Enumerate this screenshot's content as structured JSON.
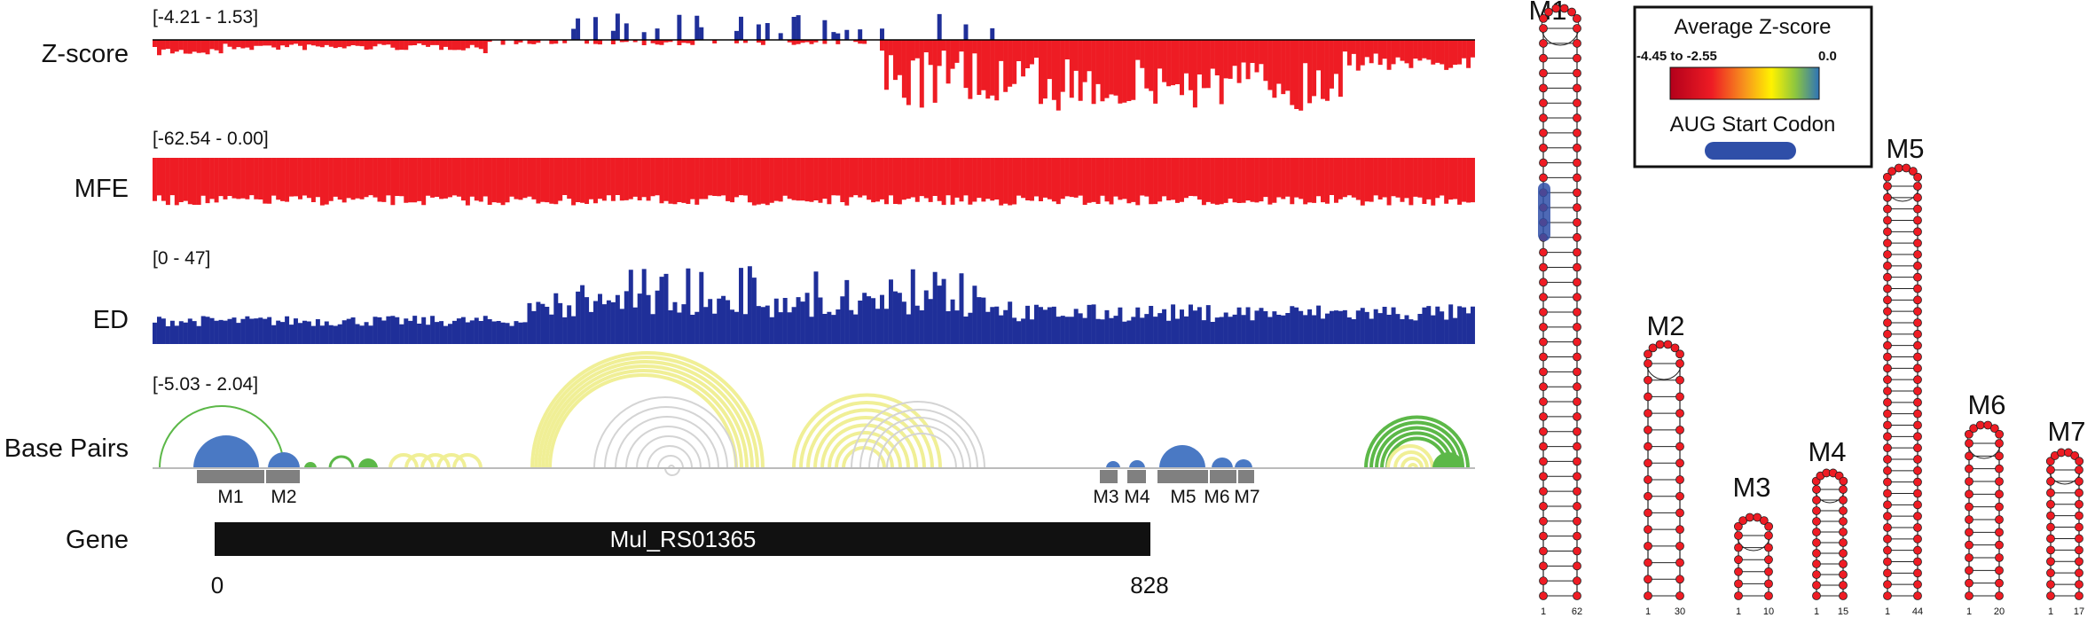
{
  "tracks": [
    {
      "id": "zscore",
      "label": "Z-score",
      "range": "[-4.21 - 1.53]"
    },
    {
      "id": "mfe",
      "label": "MFE",
      "range": "[-62.54 - 0.00]"
    },
    {
      "id": "ed",
      "label": "ED",
      "range": "[0 - 47]"
    },
    {
      "id": "bp",
      "label": "Base Pairs",
      "range": "[-5.03 - 2.04]"
    },
    {
      "id": "gene",
      "label": "Gene",
      "range": ""
    }
  ],
  "gene": {
    "name": "Mul_RS01365",
    "start": "0",
    "end": "828"
  },
  "motif_tags": [
    "M1",
    "M2",
    "M3",
    "M4",
    "M5",
    "M6",
    "M7"
  ],
  "structures": [
    {
      "name": "M1",
      "ends": [
        "1",
        "62"
      ]
    },
    {
      "name": "M2",
      "ends": [
        "1",
        "30"
      ]
    },
    {
      "name": "M3",
      "ends": [
        "1",
        "10"
      ]
    },
    {
      "name": "M4",
      "ends": [
        "1",
        "15"
      ]
    },
    {
      "name": "M5",
      "ends": [
        "1",
        "44"
      ]
    },
    {
      "name": "M6",
      "ends": [
        "1",
        "20"
      ]
    },
    {
      "name": "M7",
      "ends": [
        "1",
        "17"
      ]
    }
  ],
  "legend": {
    "title": "Average Z-score",
    "min_label": "-4.45 to -2.55",
    "max_label": "0.0",
    "aug_label": "AUG Start Codon"
  },
  "colors": {
    "negative": "#ee1c24",
    "positive": "#1f2f99",
    "ed": "#1f2f99",
    "blue_arc": "#4a79c4",
    "green_arc": "#5cb848",
    "yellow_arc": "#f0ef96",
    "grey_arc": "#d4d4d4",
    "motif_bar": "#808080",
    "gene_bar": "#111111",
    "aug": "#2f4fa8"
  }
}
